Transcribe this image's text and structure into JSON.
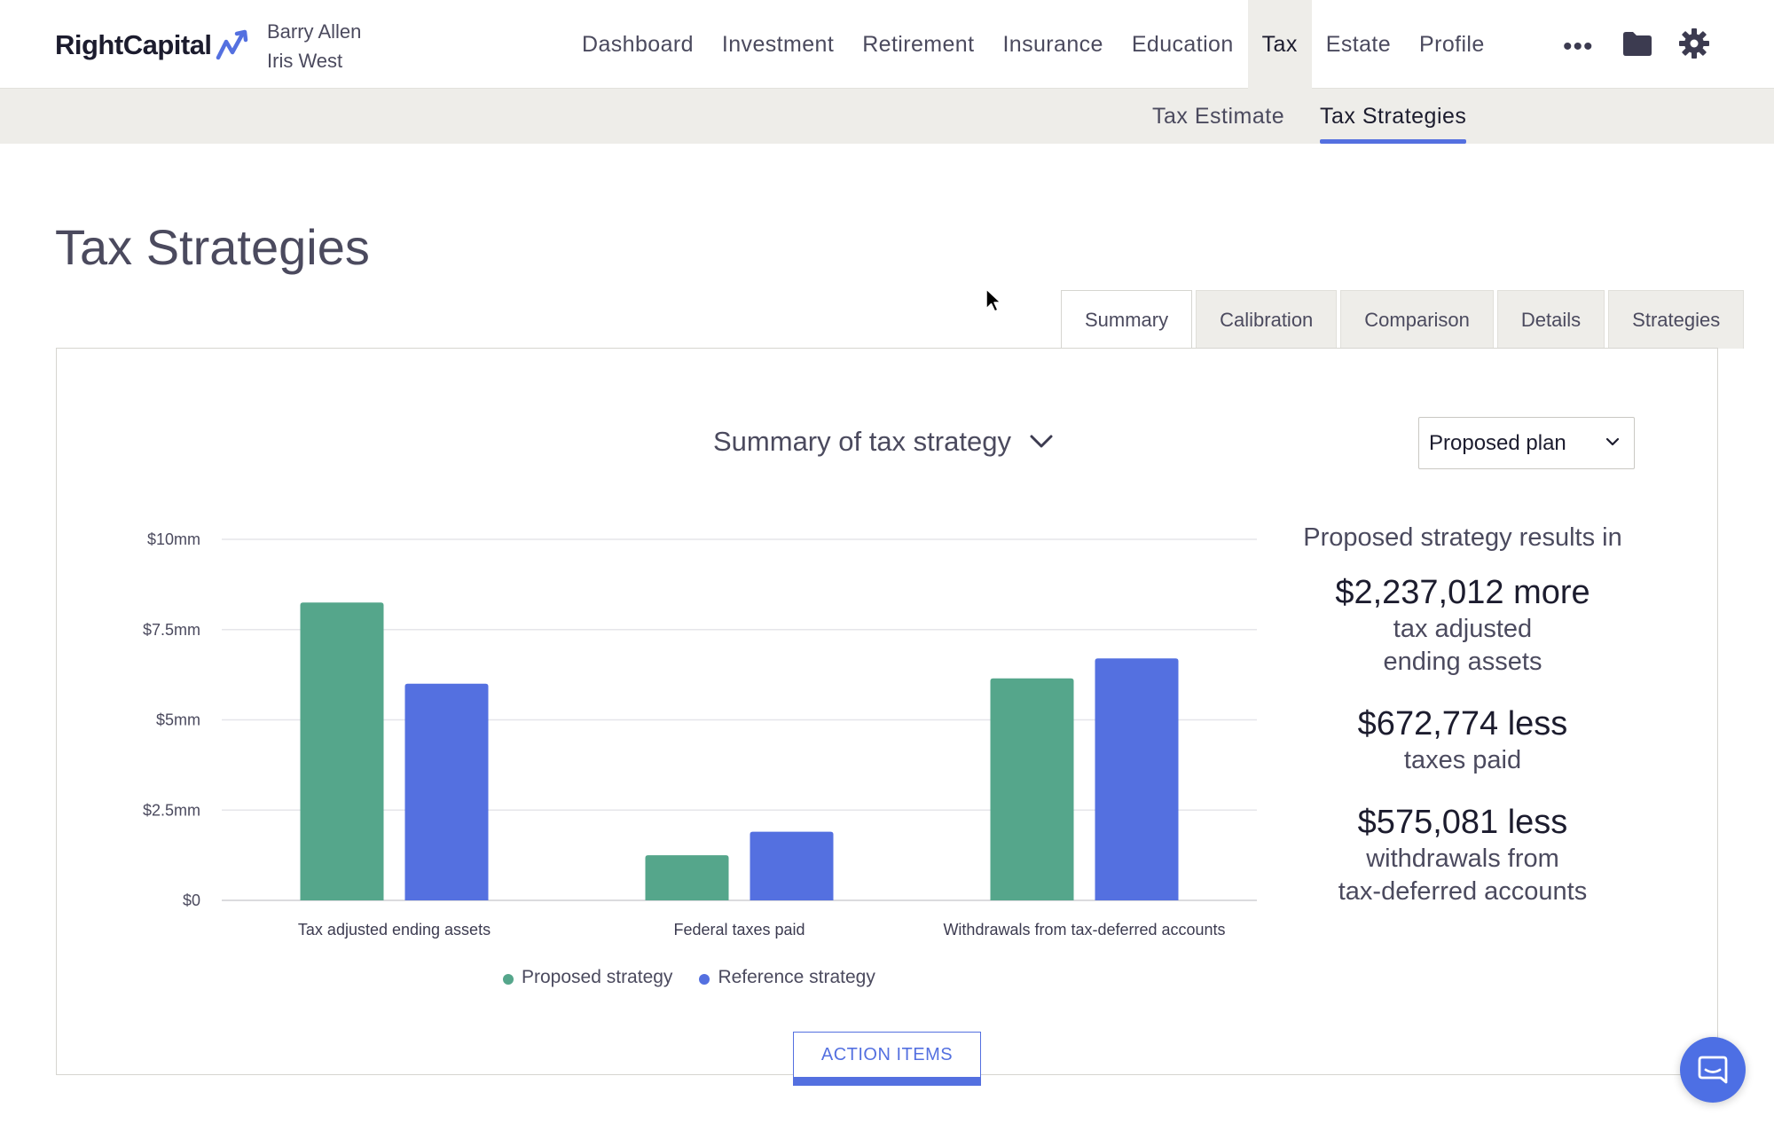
{
  "brand": {
    "name": "RightCapital",
    "logo_icon": "zigzag-arrow-icon"
  },
  "clients": [
    "Barry Allen",
    "Iris West"
  ],
  "nav": {
    "items": [
      "Dashboard",
      "Investment",
      "Retirement",
      "Insurance",
      "Education",
      "Tax",
      "Estate",
      "Profile"
    ],
    "active": "Tax",
    "more_label": "•••",
    "icons": [
      "more-icon",
      "folder-icon",
      "gear-icon"
    ]
  },
  "subnav": {
    "items": [
      "Tax Estimate",
      "Tax Strategies"
    ],
    "active": "Tax Strategies"
  },
  "page": {
    "title": "Tax Strategies"
  },
  "tabs": {
    "items": [
      "Summary",
      "Calibration",
      "Comparison",
      "Details",
      "Strategies"
    ],
    "active": "Summary"
  },
  "summary": {
    "title": "Summary of tax strategy",
    "plan_select": "Proposed plan"
  },
  "chart_data": {
    "type": "bar",
    "categories": [
      "Tax adjusted ending assets",
      "Federal taxes paid",
      "Withdrawals from tax-deferred accounts"
    ],
    "series": [
      {
        "name": "Proposed strategy",
        "color": "#55a68b",
        "values": [
          8.25,
          1.25,
          6.15
        ]
      },
      {
        "name": "Reference strategy",
        "color": "#5470e0",
        "values": [
          6.0,
          1.9,
          6.7
        ]
      }
    ],
    "yticks": [
      "$0",
      "$2.5mm",
      "$5mm",
      "$7.5mm",
      "$10mm"
    ],
    "ytick_values": [
      0,
      2.5,
      5,
      7.5,
      10
    ],
    "ylim": [
      0,
      10
    ],
    "grid": true,
    "legend": "bottom"
  },
  "results": {
    "heading": "Proposed strategy results in",
    "items": [
      {
        "value": "$2,237,012 more",
        "label_lines": [
          "tax adjusted",
          "ending assets"
        ]
      },
      {
        "value": "$672,774 less",
        "label_lines": [
          "taxes paid"
        ]
      },
      {
        "value": "$575,081 less",
        "label_lines": [
          "withdrawals from",
          "tax-deferred accounts"
        ]
      }
    ]
  },
  "action_items_label": "ACTION ITEMS",
  "chat_icon": "chat-icon",
  "colors": {
    "accent": "#5470e0",
    "proposed": "#55a68b",
    "reference": "#5470e0",
    "nav_active_bg": "#eeede9"
  }
}
